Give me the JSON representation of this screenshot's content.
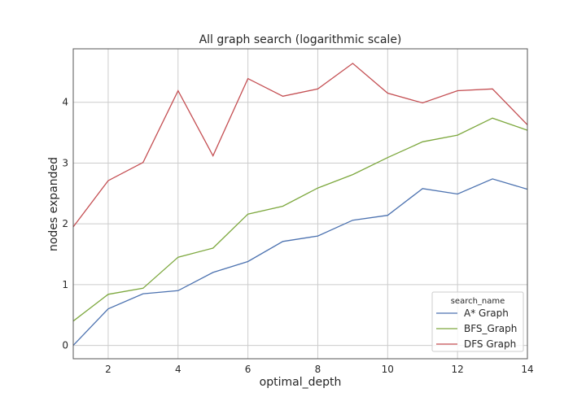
{
  "chart_data": {
    "type": "line",
    "title": "All graph search (logarithmic scale)",
    "xlabel": "optimal_depth",
    "ylabel": "nodes expanded",
    "xlim": [
      1,
      14
    ],
    "ylim": [
      -0.22,
      4.88
    ],
    "xticks": [
      2,
      4,
      6,
      8,
      10,
      12,
      14
    ],
    "yticks": [
      0,
      1,
      2,
      3,
      4
    ],
    "grid": true,
    "legend": {
      "title": "search_name",
      "placement": "lower-right"
    },
    "x": [
      1,
      2,
      3,
      4,
      5,
      6,
      7,
      8,
      9,
      10,
      11,
      12,
      13,
      14
    ],
    "series": [
      {
        "name": "A* Graph",
        "color": "#4c72b0",
        "values": [
          0.0,
          0.6,
          0.85,
          0.9,
          1.2,
          1.38,
          1.71,
          1.8,
          2.06,
          2.14,
          2.58,
          2.49,
          2.74,
          2.57
        ]
      },
      {
        "name": "BFS_Graph",
        "color": "#7da83e",
        "values": [
          0.4,
          0.84,
          0.94,
          1.45,
          1.6,
          2.16,
          2.29,
          2.59,
          2.81,
          3.09,
          3.35,
          3.46,
          3.74,
          3.54
        ]
      },
      {
        "name": "DFS Graph",
        "color": "#c44e52",
        "values": [
          1.95,
          2.71,
          3.01,
          4.19,
          3.12,
          4.39,
          4.1,
          4.22,
          4.64,
          4.15,
          3.99,
          4.19,
          4.22,
          3.63
        ]
      }
    ]
  }
}
